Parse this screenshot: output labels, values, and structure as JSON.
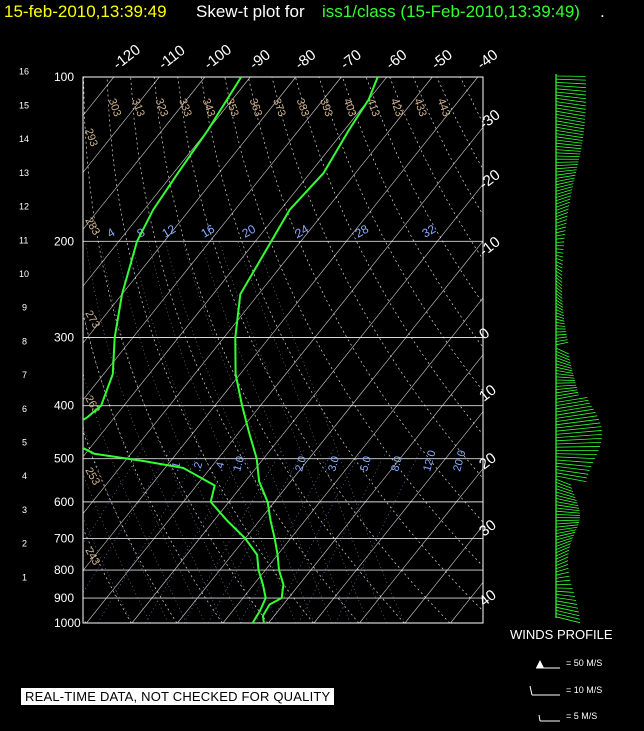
{
  "header": {
    "timestamp": "15-feb-2010,13:39:49",
    "skewt_label": "Skew-t plot for",
    "station": "iss1/class (15-Feb-2010,13:39:49)",
    "period": "."
  },
  "notice": "REAL-TIME DATA, NOT CHECKED FOR QUALITY",
  "winds_key": {
    "title": "WINDS PROFILE",
    "items": [
      {
        "label": "= 50 M/S",
        "symbol": "pennant"
      },
      {
        "label": "= 10 M/S",
        "symbol": "full-barb"
      },
      {
        "label": "= 5 M/S",
        "symbol": "half-barb"
      }
    ]
  },
  "colors": {
    "trace": "#33ff33",
    "isotherm": "#ffffff",
    "isobar": "#ffffff",
    "dry_adiabat": "#ffffff",
    "moist_adiabat": "#aaaaaa",
    "mixing_ratio": "#88aaff",
    "theta_label": "#d2b48c",
    "header_time": "#ffff00",
    "station": "#33ff33",
    "background": "#000000"
  },
  "chart_data": {
    "type": "line",
    "pressure_ticks": [
      "100",
      "200",
      "300",
      "400",
      "500",
      "600",
      "700",
      "800",
      "900",
      "1000"
    ],
    "height_km_ticks": [
      "1",
      "2",
      "3",
      "4",
      "5",
      "6",
      "7",
      "8",
      "9",
      "10",
      "11",
      "12",
      "13",
      "14",
      "15",
      "16"
    ],
    "temp_top_ticks": [
      "-120",
      "-110",
      "-100",
      "-90",
      "-80",
      "-70",
      "-60",
      "-50",
      "-40"
    ],
    "temp_right_ticks": [
      "-30",
      "-20",
      "-10",
      "0",
      "10",
      "20",
      "30",
      "40"
    ],
    "dry_adiabat_labels": [
      "293",
      "303",
      "313",
      "323",
      "333",
      "343",
      "353",
      "363",
      "373",
      "383",
      "393",
      "403",
      "413",
      "423",
      "433",
      "443"
    ],
    "dry_adiabat_left_labels": [
      "283",
      "273",
      "263",
      "253",
      "243"
    ],
    "mixing_ratio_labels_top": [
      "4",
      "8",
      "12",
      "16",
      "20",
      "24",
      "28",
      "32"
    ],
    "mixing_ratio_labels_low": [
      ".1",
      ".2",
      ".4",
      "1.0",
      "2.0",
      "3.0",
      "5.0",
      "8.0",
      "12.0",
      "20.0"
    ],
    "temperature_profile": [
      {
        "p": 1000,
        "t": 9.0
      },
      {
        "p": 970,
        "t": 7.5
      },
      {
        "p": 925,
        "t": 7.0
      },
      {
        "p": 900,
        "t": 8.5
      },
      {
        "p": 850,
        "t": 6.5
      },
      {
        "p": 800,
        "t": 3.0
      },
      {
        "p": 750,
        "t": 0.0
      },
      {
        "p": 700,
        "t": -3.5
      },
      {
        "p": 650,
        "t": -7.5
      },
      {
        "p": 600,
        "t": -11.5
      },
      {
        "p": 550,
        "t": -17.0
      },
      {
        "p": 500,
        "t": -21.5
      },
      {
        "p": 450,
        "t": -27.5
      },
      {
        "p": 400,
        "t": -34.0
      },
      {
        "p": 350,
        "t": -41.0
      },
      {
        "p": 300,
        "t": -47.5
      },
      {
        "p": 250,
        "t": -54.0
      },
      {
        "p": 200,
        "t": -56.5
      },
      {
        "p": 175,
        "t": -58.0
      },
      {
        "p": 150,
        "t": -57.0
      },
      {
        "p": 125,
        "t": -59.0
      },
      {
        "p": 110,
        "t": -60.0
      },
      {
        "p": 100,
        "t": -62.0
      }
    ],
    "dewpoint_profile": [
      {
        "p": 1000,
        "t": 6.5
      },
      {
        "p": 950,
        "t": 6.0
      },
      {
        "p": 900,
        "t": 5.0
      },
      {
        "p": 850,
        "t": 2.0
      },
      {
        "p": 800,
        "t": -1.5
      },
      {
        "p": 750,
        "t": -4.5
      },
      {
        "p": 700,
        "t": -10.0
      },
      {
        "p": 650,
        "t": -17.0
      },
      {
        "p": 600,
        "t": -24.0
      },
      {
        "p": 560,
        "t": -26.0
      },
      {
        "p": 520,
        "t": -36.0
      },
      {
        "p": 505,
        "t": -46.0
      },
      {
        "p": 490,
        "t": -58.0
      },
      {
        "p": 470,
        "t": -64.0
      },
      {
        "p": 440,
        "t": -68.0
      },
      {
        "p": 420,
        "t": -66.0
      },
      {
        "p": 400,
        "t": -65.0
      },
      {
        "p": 350,
        "t": -68.0
      },
      {
        "p": 300,
        "t": -74.0
      },
      {
        "p": 250,
        "t": -80.0
      },
      {
        "p": 200,
        "t": -86.0
      },
      {
        "p": 175,
        "t": -88.0
      },
      {
        "p": 150,
        "t": -89.0
      },
      {
        "p": 125,
        "t": -90.0
      },
      {
        "p": 100,
        "t": -92.0
      }
    ],
    "ylim": [
      1000,
      100
    ],
    "xlim": [
      -40,
      40
    ],
    "grid": true
  }
}
